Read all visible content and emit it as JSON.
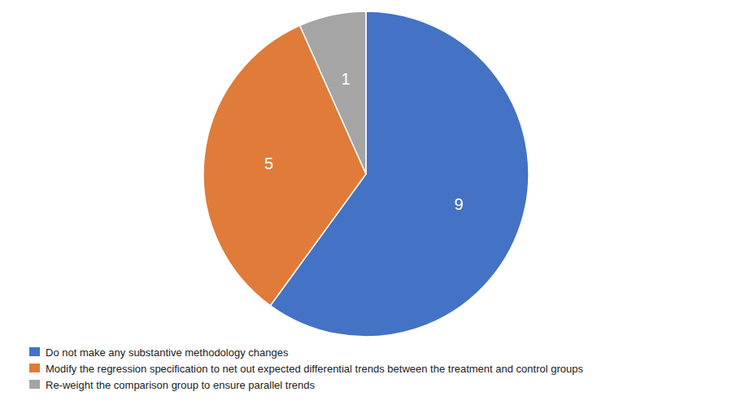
{
  "chart_data": {
    "type": "pie",
    "labels": [
      "Do not make any substantive methodology changes",
      "Modify the regression specification to net out expected differential trends between the treatment and control groups",
      "Re-weight the comparison group to ensure parallel trends"
    ],
    "values": [
      9,
      5,
      1
    ],
    "colors": [
      "#4472C4",
      "#E07B39",
      "#A5A5A5"
    ],
    "data_labels": true,
    "legend": "lower left"
  }
}
